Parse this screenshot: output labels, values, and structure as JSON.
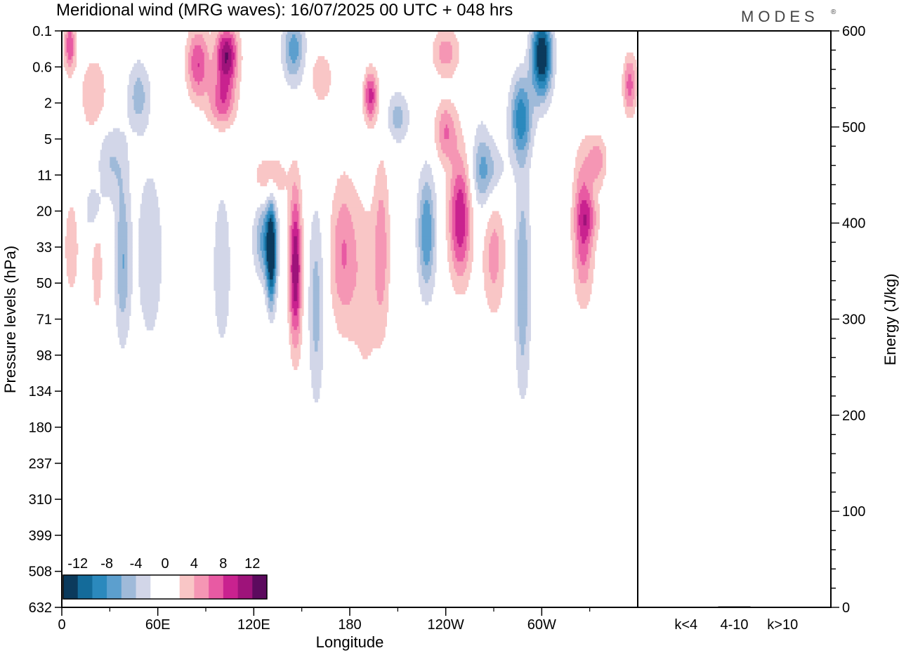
{
  "title": "Meridional wind (MRG waves):  16/07/2025  00 UTC  + 048 hrs",
  "logo": "MODES",
  "logo_mark": "®",
  "colors": [
    "#0b3a5c",
    "#146b9a",
    "#2b89bd",
    "#5c9fce",
    "#9fbad9",
    "#d2d6e8",
    "#ffffff",
    "#ffffff",
    "#f9c6c6",
    "#f596b4",
    "#e85aa3",
    "#c9228f",
    "#9e137a",
    "#5c0a5e"
  ],
  "chart_data": [
    {
      "type": "heatmap",
      "title": "Meridional wind (MRG waves):  16/07/2025  00 UTC  + 048 hrs",
      "xlabel": "Longitude",
      "ylabel": "Pressure levels (hPa)",
      "x_ticks": [
        "0",
        "60E",
        "120E",
        "180",
        "120W",
        "60W"
      ],
      "y_ticks": [
        "0.1",
        "0.6",
        "2",
        "5",
        "11",
        "20",
        "33",
        "50",
        "71",
        "98",
        "134",
        "180",
        "237",
        "310",
        "399",
        "508",
        "632"
      ],
      "colorbar": {
        "tick_labels": [
          "-12",
          "-8",
          "-4",
          "0",
          "4",
          "8",
          "12"
        ],
        "levels": [
          -14,
          -12,
          -10,
          -8,
          -6,
          -4,
          -2,
          0,
          2,
          4,
          6,
          8,
          10,
          12,
          14
        ]
      },
      "features": [
        {
          "lon": 131,
          "level": 6.2,
          "value": -13,
          "dlon": 2.2,
          "dlev": 1.0
        },
        {
          "lon": 146,
          "level": 6.6,
          "value": 12,
          "dlon": 2.8,
          "dlev": 1.5
        },
        {
          "lon": 159,
          "level": 7.6,
          "value": -5,
          "dlon": 3.5,
          "dlev": 2.0
        },
        {
          "lon": 127,
          "level": 5.8,
          "value": -7,
          "dlon": 5.0,
          "dlev": 0.8
        },
        {
          "lon": 176,
          "level": 6.2,
          "value": 6,
          "dlon": 6.0,
          "dlev": 1.5
        },
        {
          "lon": 200,
          "level": 6.0,
          "value": 5,
          "dlon": 3.5,
          "dlev": 1.7
        },
        {
          "lon": 228,
          "level": 5.6,
          "value": -8,
          "dlon": 4.0,
          "dlev": 1.2
        },
        {
          "lon": 249,
          "level": 5.2,
          "value": 10,
          "dlon": 5.0,
          "dlev": 1.2
        },
        {
          "lon": 262,
          "level": 3.8,
          "value": -4,
          "dlon": 4.5,
          "dlev": 1.0
        },
        {
          "lon": 288,
          "level": 7.0,
          "value": -6,
          "dlon": 3.5,
          "dlev": 2.2
        },
        {
          "lon": 326,
          "level": 5.4,
          "value": 8,
          "dlon": 4.5,
          "dlev": 1.4
        },
        {
          "lon": 38,
          "level": 6.4,
          "value": -6,
          "dlon": 3.5,
          "dlev": 1.6
        },
        {
          "lon": 55,
          "level": 6.2,
          "value": -4,
          "dlon": 6.0,
          "dlev": 1.8
        },
        {
          "lon": 22,
          "level": 6.4,
          "value": 3,
          "dlon": 3.0,
          "dlev": 1.4
        },
        {
          "lon": 6,
          "level": 6.0,
          "value": 3,
          "dlon": 4.0,
          "dlev": 1.2
        },
        {
          "lon": 100,
          "level": 6.6,
          "value": -4,
          "dlon": 4.0,
          "dlev": 1.6
        },
        {
          "lon": 103,
          "level": 0.7,
          "value": 12,
          "dlon": 5.0,
          "dlev": 0.6
        },
        {
          "lon": 85,
          "level": 0.9,
          "value": 8,
          "dlon": 5.0,
          "dlev": 0.7
        },
        {
          "lon": 100,
          "level": 2.0,
          "value": 7,
          "dlon": 6.0,
          "dlev": 0.5
        },
        {
          "lon": 145,
          "level": 0.5,
          "value": -7,
          "dlon": 5.0,
          "dlev": 0.7
        },
        {
          "lon": 162,
          "level": 1.3,
          "value": 4,
          "dlon": 5.0,
          "dlev": 0.5
        },
        {
          "lon": 193,
          "level": 1.8,
          "value": 9,
          "dlon": 3.0,
          "dlev": 0.5
        },
        {
          "lon": 210,
          "level": 2.4,
          "value": -5,
          "dlon": 5.0,
          "dlev": 0.5
        },
        {
          "lon": 240,
          "level": 2.8,
          "value": 6,
          "dlon": 5.0,
          "dlev": 0.6
        },
        {
          "lon": 300,
          "level": 0.7,
          "value": -15,
          "dlon": 4.5,
          "dlev": 0.8
        },
        {
          "lon": 287,
          "level": 2.4,
          "value": -9,
          "dlon": 5.0,
          "dlev": 0.8
        },
        {
          "lon": 268,
          "level": 3.9,
          "value": -4,
          "dlon": 7.0,
          "dlev": 0.6
        },
        {
          "lon": 20,
          "level": 1.8,
          "value": 4,
          "dlon": 6.0,
          "dlev": 0.8
        },
        {
          "lon": 48,
          "level": 1.8,
          "value": -5,
          "dlon": 5.0,
          "dlev": 0.7
        },
        {
          "lon": 30,
          "level": 3.6,
          "value": -4,
          "dlon": 7.0,
          "dlev": 0.8
        },
        {
          "lon": 130,
          "level": 4.1,
          "value": 4,
          "dlon": 8.0,
          "dlev": 0.5
        },
        {
          "lon": 330,
          "level": 5.2,
          "value": 3,
          "dlon": 5.0,
          "dlev": 0.4
        },
        {
          "lon": 335,
          "level": 3.6,
          "value": 5,
          "dlon": 4.0,
          "dlev": 0.5
        },
        {
          "lon": 355,
          "level": 1.5,
          "value": 7,
          "dlon": 3.0,
          "dlev": 0.6
        },
        {
          "lon": 5,
          "level": 0.4,
          "value": 8,
          "dlon": 2.5,
          "dlev": 0.5
        },
        {
          "lon": 240,
          "level": 0.6,
          "value": 5,
          "dlon": 6.0,
          "dlev": 0.5
        },
        {
          "lon": 270,
          "level": 6.2,
          "value": 5,
          "dlon": 5.0,
          "dlev": 1.2
        },
        {
          "lon": 190,
          "level": 7.2,
          "value": 3,
          "dlon": 6.0,
          "dlev": 2.0
        },
        {
          "lon": 20,
          "level": 5.0,
          "value": -4,
          "dlon": 4.0,
          "dlev": 0.5
        }
      ]
    },
    {
      "type": "bar",
      "categories": [
        "k<4",
        "4-10",
        "k>10"
      ],
      "values": [
        0.3,
        1.0,
        0.2
      ],
      "ylabel": "Energy (J/kg)",
      "ylim": [
        0,
        600
      ],
      "y_ticks": [
        0,
        100,
        200,
        300,
        400,
        500,
        600
      ]
    }
  ]
}
